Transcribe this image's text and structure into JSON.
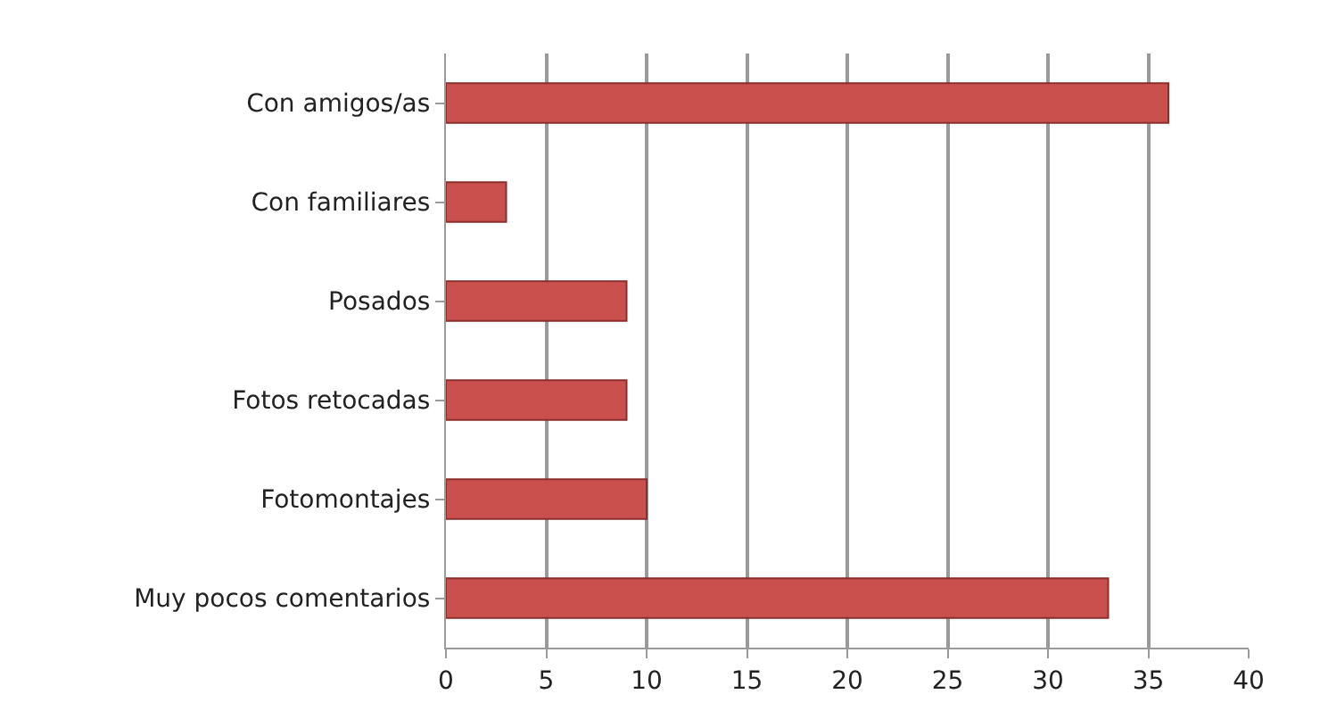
{
  "chart_data": {
    "type": "bar",
    "orientation": "horizontal",
    "categories": [
      "Con amigos/as",
      "Con familiares",
      "Posados",
      "Fotos retocadas",
      "Fotomontajes",
      "Muy pocos comentarios"
    ],
    "values": [
      36,
      3,
      9,
      9,
      10,
      33
    ],
    "color": "#c9504c",
    "xlim": [
      0,
      40
    ],
    "xticks": [
      0,
      5,
      10,
      15,
      20,
      25,
      30,
      35,
      40
    ],
    "grid": "x",
    "legend": false
  }
}
